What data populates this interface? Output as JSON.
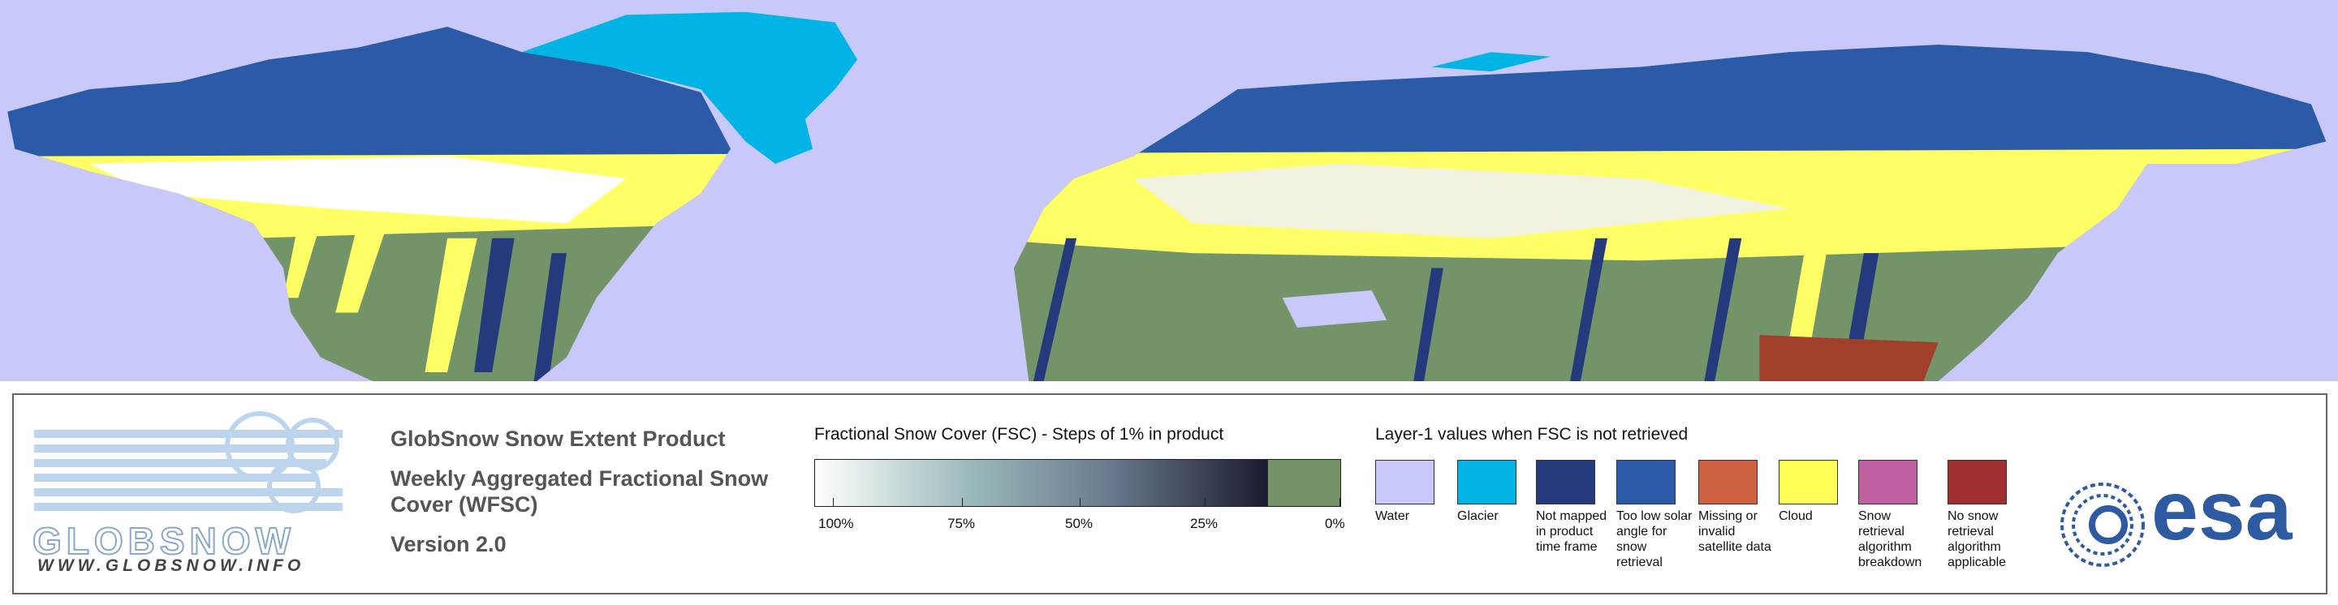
{
  "logo": {
    "name": "GLOBSNOW",
    "url": "WWW.GLOBSNOW.INFO"
  },
  "product": {
    "title": "GlobSnow Snow Extent Product",
    "subtitle_line1": "Weekly Aggregated Fractional Snow",
    "subtitle_line2": "Cover (WFSC)",
    "version": "Version 2.0"
  },
  "fsc_legend": {
    "title": "Fractional Snow Cover (FSC) - Steps of 1% in product",
    "ticks": [
      "100%",
      "75%",
      "50%",
      "25%",
      "0%"
    ]
  },
  "layer1_legend": {
    "title": "Layer-1 values when FSC is not retrieved",
    "items": [
      {
        "label": "Water",
        "color": "#c8c8fa"
      },
      {
        "label": "Glacier",
        "color": "#00b4e6"
      },
      {
        "label": "Not mapped in product time frame",
        "color": "#253a7d"
      },
      {
        "label": "Too low solar angle for snow retrieval",
        "color": "#2a5aa8"
      },
      {
        "label": "Missing or invalid satellite data",
        "color": "#cc6040"
      },
      {
        "label": "Cloud",
        "color": "#ffff55"
      },
      {
        "label": "Snow retrieval algorithm breakdown",
        "color": "#c060a0"
      },
      {
        "label": "No snow retrieval algorithm applicable",
        "color": "#a03030"
      }
    ]
  },
  "agency": {
    "name": "esa"
  }
}
